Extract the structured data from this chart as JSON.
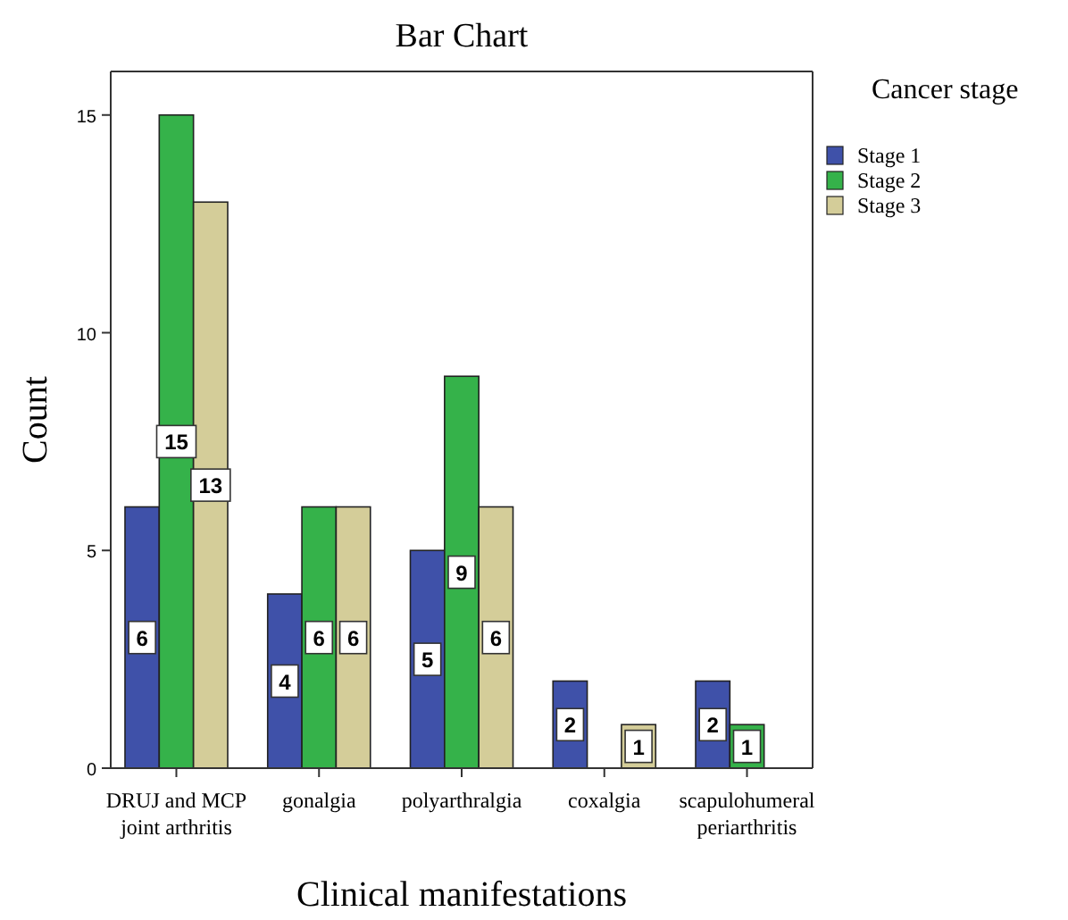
{
  "chart_data": {
    "type": "bar",
    "title": "Bar Chart",
    "xlabel": "Clinical manifestations",
    "ylabel": "Count",
    "legend_title": "Cancer stage",
    "categories": [
      "DRUJ and MCP joint arthritis",
      "gonalgia",
      "polyarthralgia",
      "coxalgia",
      "scapulohumeral periarthritis"
    ],
    "series": [
      {
        "name": "Stage 1",
        "color": "#3f51a9",
        "values": [
          6,
          4,
          5,
          2,
          2
        ]
      },
      {
        "name": "Stage 2",
        "color": "#35b24a",
        "values": [
          15,
          6,
          9,
          null,
          1
        ]
      },
      {
        "name": "Stage 3",
        "color": "#d4cd99",
        "values": [
          13,
          6,
          6,
          1,
          null
        ]
      }
    ],
    "ylim": [
      0,
      16
    ],
    "yticks": [
      0,
      5,
      10,
      15
    ],
    "grid": false,
    "legend": "top right",
    "data_labels": true
  }
}
